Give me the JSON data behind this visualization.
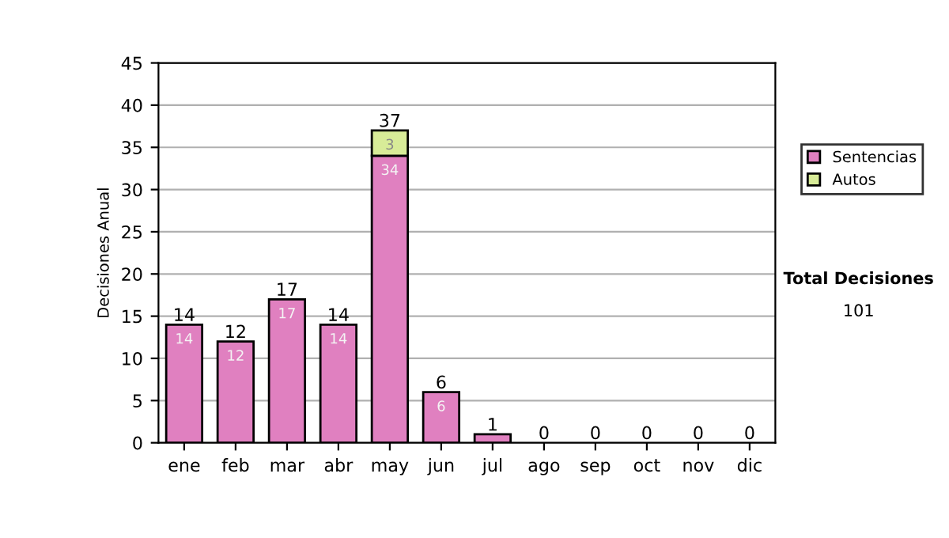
{
  "chart_data": {
    "type": "bar",
    "stacked": true,
    "ylabel": "Decisiones Anual",
    "categories": [
      "ene",
      "feb",
      "mar",
      "abr",
      "may",
      "jun",
      "jul",
      "ago",
      "sep",
      "oct",
      "nov",
      "dic"
    ],
    "series": [
      {
        "name": "Sentencias",
        "color": "#e080c0",
        "values": [
          14,
          12,
          17,
          14,
          34,
          6,
          1,
          0,
          0,
          0,
          0,
          0
        ],
        "value_labels": [
          "14",
          "12",
          "17",
          "14",
          "34",
          "6",
          null,
          null,
          null,
          null,
          null,
          null
        ]
      },
      {
        "name": "Autos",
        "color": "#d8ec98",
        "values": [
          0,
          0,
          0,
          0,
          3,
          0,
          0,
          0,
          0,
          0,
          0,
          0
        ],
        "value_labels": [
          null,
          null,
          null,
          null,
          "3",
          null,
          null,
          null,
          null,
          null,
          null,
          null
        ]
      }
    ],
    "totals": [
      "14",
      "12",
      "17",
      "14",
      "37",
      "6",
      "1",
      "0",
      "0",
      "0",
      "0",
      "0"
    ],
    "ylim": [
      0,
      45
    ],
    "yticks": [
      0,
      5,
      10,
      15,
      20,
      25,
      30,
      35,
      40,
      45
    ],
    "grid": "y",
    "legend": "right",
    "annotations": [
      "Total Decisiones",
      "101"
    ]
  }
}
